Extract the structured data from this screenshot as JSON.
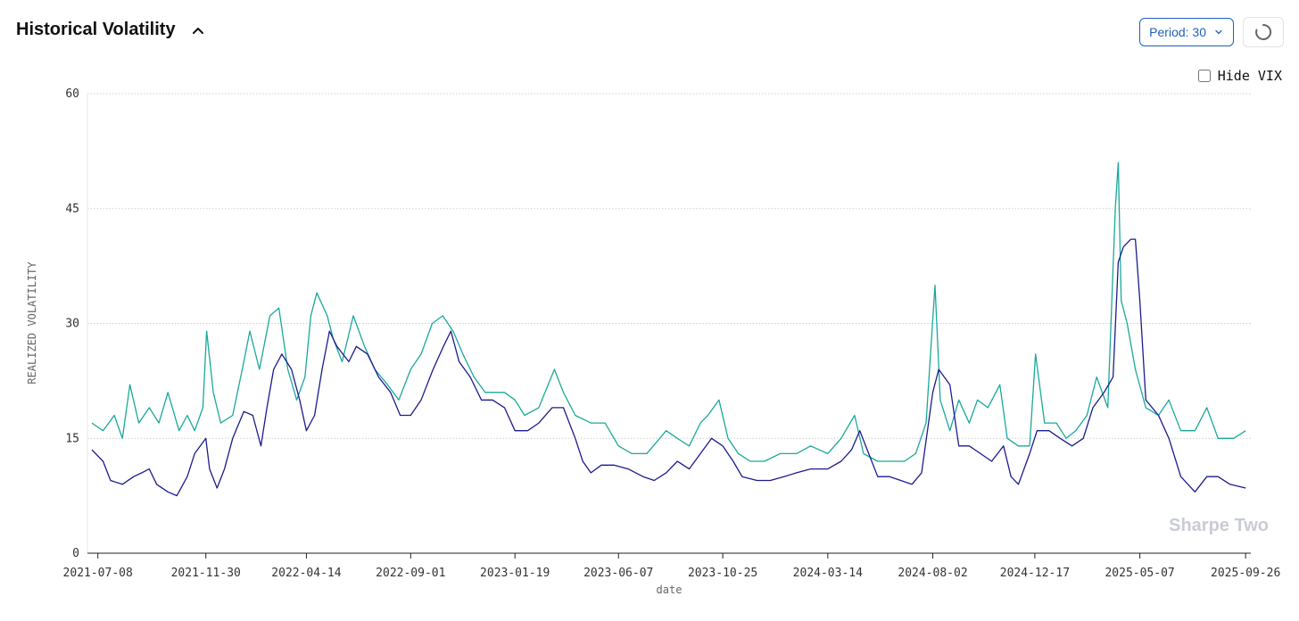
{
  "header": {
    "title": "Historical Volatility",
    "collapse_icon": "chevron-up-icon"
  },
  "controls": {
    "period_label": "Period: 30",
    "period_icon": "chevron-down-icon",
    "refresh_icon": "spinner-icon"
  },
  "toggle": {
    "hide_vix_label": "Hide VIX",
    "checked": false
  },
  "watermark": "Sharpe Two",
  "colors": {
    "vix": "#1aa89a",
    "realized": "#1b1b8f",
    "grid": "#cfcfcf"
  },
  "chart_data": {
    "type": "line",
    "xlabel": "date",
    "ylabel": "REALIZED VOLATILITY",
    "ylim": [
      0,
      60
    ],
    "yticks": [
      0,
      15,
      30,
      45,
      60
    ],
    "xlim": [
      "2021-06-24",
      "2025-10-03"
    ],
    "xticks": [
      "2021-07-08",
      "2021-11-30",
      "2022-04-14",
      "2022-09-01",
      "2023-01-19",
      "2023-06-07",
      "2023-10-25",
      "2024-03-14",
      "2024-08-02",
      "2024-12-17",
      "2025-05-07",
      "2025-09-26"
    ],
    "grid": "horizontal-dotted",
    "series": [
      {
        "color": "#1aa89a",
        "points": [
          [
            "2021-06-30",
            17
          ],
          [
            "2021-07-15",
            16
          ],
          [
            "2021-07-30",
            18
          ],
          [
            "2021-08-10",
            15
          ],
          [
            "2021-08-20",
            22
          ],
          [
            "2021-09-01",
            17
          ],
          [
            "2021-09-15",
            19
          ],
          [
            "2021-09-28",
            17
          ],
          [
            "2021-10-10",
            21
          ],
          [
            "2021-10-25",
            16
          ],
          [
            "2021-11-05",
            18
          ],
          [
            "2021-11-15",
            16
          ],
          [
            "2021-11-26",
            19
          ],
          [
            "2021-12-01",
            29
          ],
          [
            "2021-12-10",
            21
          ],
          [
            "2021-12-20",
            17
          ],
          [
            "2022-01-05",
            18
          ],
          [
            "2022-01-20",
            25
          ],
          [
            "2022-01-28",
            29
          ],
          [
            "2022-02-10",
            24
          ],
          [
            "2022-02-24",
            31
          ],
          [
            "2022-03-08",
            32
          ],
          [
            "2022-03-20",
            24
          ],
          [
            "2022-04-01",
            20
          ],
          [
            "2022-04-12",
            23
          ],
          [
            "2022-04-20",
            31
          ],
          [
            "2022-04-28",
            34
          ],
          [
            "2022-05-12",
            31
          ],
          [
            "2022-05-20",
            28
          ],
          [
            "2022-06-01",
            25
          ],
          [
            "2022-06-16",
            31
          ],
          [
            "2022-07-01",
            27
          ],
          [
            "2022-07-15",
            24
          ],
          [
            "2022-08-01",
            22
          ],
          [
            "2022-08-16",
            20
          ],
          [
            "2022-09-01",
            24
          ],
          [
            "2022-09-15",
            26
          ],
          [
            "2022-09-30",
            30
          ],
          [
            "2022-10-14",
            31
          ],
          [
            "2022-10-28",
            29
          ],
          [
            "2022-11-10",
            26
          ],
          [
            "2022-11-25",
            23
          ],
          [
            "2022-12-10",
            21
          ],
          [
            "2023-01-05",
            21
          ],
          [
            "2023-01-19",
            20
          ],
          [
            "2023-02-01",
            18
          ],
          [
            "2023-02-20",
            19
          ],
          [
            "2023-03-13",
            24
          ],
          [
            "2023-03-25",
            21
          ],
          [
            "2023-04-10",
            18
          ],
          [
            "2023-05-01",
            17
          ],
          [
            "2023-05-20",
            17
          ],
          [
            "2023-06-07",
            14
          ],
          [
            "2023-06-25",
            13
          ],
          [
            "2023-07-15",
            13
          ],
          [
            "2023-08-10",
            16
          ],
          [
            "2023-08-25",
            15
          ],
          [
            "2023-09-10",
            14
          ],
          [
            "2023-09-25",
            17
          ],
          [
            "2023-10-05",
            18
          ],
          [
            "2023-10-20",
            20
          ],
          [
            "2023-11-01",
            15
          ],
          [
            "2023-11-15",
            13
          ],
          [
            "2023-12-01",
            12
          ],
          [
            "2023-12-20",
            12
          ],
          [
            "2024-01-10",
            13
          ],
          [
            "2024-02-01",
            13
          ],
          [
            "2024-02-20",
            14
          ],
          [
            "2024-03-14",
            13
          ],
          [
            "2024-04-01",
            15
          ],
          [
            "2024-04-19",
            18
          ],
          [
            "2024-05-01",
            13
          ],
          [
            "2024-05-20",
            12
          ],
          [
            "2024-06-10",
            12
          ],
          [
            "2024-06-25",
            12
          ],
          [
            "2024-07-10",
            13
          ],
          [
            "2024-07-24",
            17
          ],
          [
            "2024-08-05",
            35
          ],
          [
            "2024-08-12",
            20
          ],
          [
            "2024-08-25",
            16
          ],
          [
            "2024-09-06",
            20
          ],
          [
            "2024-09-20",
            17
          ],
          [
            "2024-10-01",
            20
          ],
          [
            "2024-10-15",
            19
          ],
          [
            "2024-10-31",
            22
          ],
          [
            "2024-11-10",
            15
          ],
          [
            "2024-11-25",
            14
          ],
          [
            "2024-12-10",
            14
          ],
          [
            "2024-12-18",
            26
          ],
          [
            "2024-12-30",
            17
          ],
          [
            "2025-01-15",
            17
          ],
          [
            "2025-01-28",
            15
          ],
          [
            "2025-02-10",
            16
          ],
          [
            "2025-02-25",
            18
          ],
          [
            "2025-03-10",
            23
          ],
          [
            "2025-03-25",
            19
          ],
          [
            "2025-04-04",
            45
          ],
          [
            "2025-04-08",
            51
          ],
          [
            "2025-04-12",
            33
          ],
          [
            "2025-04-20",
            30
          ],
          [
            "2025-05-01",
            24
          ],
          [
            "2025-05-15",
            19
          ],
          [
            "2025-06-01",
            18
          ],
          [
            "2025-06-15",
            20
          ],
          [
            "2025-07-01",
            16
          ],
          [
            "2025-07-20",
            16
          ],
          [
            "2025-08-05",
            19
          ],
          [
            "2025-08-20",
            15
          ],
          [
            "2025-09-10",
            15
          ],
          [
            "2025-09-26",
            16
          ]
        ]
      },
      {
        "color": "#1b1b8f",
        "points": [
          [
            "2021-06-30",
            13.5
          ],
          [
            "2021-07-15",
            12
          ],
          [
            "2021-07-25",
            9.5
          ],
          [
            "2021-08-10",
            9
          ],
          [
            "2021-08-25",
            10
          ],
          [
            "2021-09-05",
            10.5
          ],
          [
            "2021-09-15",
            11
          ],
          [
            "2021-09-25",
            9
          ],
          [
            "2021-10-10",
            8
          ],
          [
            "2021-10-22",
            7.5
          ],
          [
            "2021-11-05",
            10
          ],
          [
            "2021-11-15",
            13
          ],
          [
            "2021-11-30",
            15
          ],
          [
            "2021-12-05",
            11
          ],
          [
            "2021-12-15",
            8.5
          ],
          [
            "2021-12-25",
            11
          ],
          [
            "2022-01-05",
            15
          ],
          [
            "2022-01-20",
            18.5
          ],
          [
            "2022-02-01",
            18
          ],
          [
            "2022-02-12",
            14
          ],
          [
            "2022-02-20",
            19
          ],
          [
            "2022-03-01",
            24
          ],
          [
            "2022-03-12",
            26
          ],
          [
            "2022-03-25",
            24
          ],
          [
            "2022-04-05",
            20
          ],
          [
            "2022-04-14",
            16
          ],
          [
            "2022-04-25",
            18
          ],
          [
            "2022-05-05",
            24
          ],
          [
            "2022-05-15",
            29
          ],
          [
            "2022-05-25",
            27
          ],
          [
            "2022-06-10",
            25
          ],
          [
            "2022-06-20",
            27
          ],
          [
            "2022-07-05",
            26
          ],
          [
            "2022-07-20",
            23
          ],
          [
            "2022-08-05",
            21
          ],
          [
            "2022-08-18",
            18
          ],
          [
            "2022-09-01",
            18
          ],
          [
            "2022-09-15",
            20
          ],
          [
            "2022-10-01",
            24
          ],
          [
            "2022-10-15",
            27
          ],
          [
            "2022-10-25",
            29
          ],
          [
            "2022-11-05",
            25
          ],
          [
            "2022-11-20",
            23
          ],
          [
            "2022-12-05",
            20
          ],
          [
            "2022-12-20",
            20
          ],
          [
            "2023-01-05",
            19
          ],
          [
            "2023-01-19",
            16
          ],
          [
            "2023-02-05",
            16
          ],
          [
            "2023-02-20",
            17
          ],
          [
            "2023-03-10",
            19
          ],
          [
            "2023-03-25",
            19
          ],
          [
            "2023-04-10",
            15
          ],
          [
            "2023-04-20",
            12
          ],
          [
            "2023-05-01",
            10.5
          ],
          [
            "2023-05-15",
            11.5
          ],
          [
            "2023-06-01",
            11.5
          ],
          [
            "2023-06-20",
            11
          ],
          [
            "2023-07-10",
            10
          ],
          [
            "2023-07-25",
            9.5
          ],
          [
            "2023-08-10",
            10.5
          ],
          [
            "2023-08-25",
            12
          ],
          [
            "2023-09-10",
            11
          ],
          [
            "2023-09-25",
            13
          ],
          [
            "2023-10-10",
            15
          ],
          [
            "2023-10-25",
            14
          ],
          [
            "2023-11-08",
            12
          ],
          [
            "2023-11-20",
            10
          ],
          [
            "2023-12-10",
            9.5
          ],
          [
            "2023-12-28",
            9.5
          ],
          [
            "2024-01-15",
            10
          ],
          [
            "2024-02-01",
            10.5
          ],
          [
            "2024-02-20",
            11
          ],
          [
            "2024-03-14",
            11
          ],
          [
            "2024-04-01",
            12
          ],
          [
            "2024-04-15",
            13.5
          ],
          [
            "2024-04-26",
            16
          ],
          [
            "2024-05-08",
            13
          ],
          [
            "2024-05-20",
            10
          ],
          [
            "2024-06-05",
            10
          ],
          [
            "2024-06-20",
            9.5
          ],
          [
            "2024-07-05",
            9
          ],
          [
            "2024-07-18",
            10.5
          ],
          [
            "2024-08-02",
            21
          ],
          [
            "2024-08-10",
            24
          ],
          [
            "2024-08-25",
            22
          ],
          [
            "2024-09-06",
            14
          ],
          [
            "2024-09-20",
            14
          ],
          [
            "2024-10-05",
            13
          ],
          [
            "2024-10-20",
            12
          ],
          [
            "2024-11-05",
            14
          ],
          [
            "2024-11-15",
            10
          ],
          [
            "2024-11-25",
            9
          ],
          [
            "2024-12-10",
            13
          ],
          [
            "2024-12-20",
            16
          ],
          [
            "2025-01-05",
            16
          ],
          [
            "2025-01-20",
            15
          ],
          [
            "2025-02-05",
            14
          ],
          [
            "2025-02-20",
            15
          ],
          [
            "2025-03-05",
            19
          ],
          [
            "2025-03-20",
            21
          ],
          [
            "2025-04-01",
            23
          ],
          [
            "2025-04-08",
            38
          ],
          [
            "2025-04-15",
            40
          ],
          [
            "2025-04-25",
            41
          ],
          [
            "2025-05-01",
            41
          ],
          [
            "2025-05-07",
            33
          ],
          [
            "2025-05-15",
            20
          ],
          [
            "2025-06-01",
            18
          ],
          [
            "2025-06-15",
            15
          ],
          [
            "2025-07-01",
            10
          ],
          [
            "2025-07-20",
            8
          ],
          [
            "2025-08-05",
            10
          ],
          [
            "2025-08-20",
            10
          ],
          [
            "2025-09-05",
            9
          ],
          [
            "2025-09-26",
            8.5
          ]
        ]
      }
    ]
  }
}
